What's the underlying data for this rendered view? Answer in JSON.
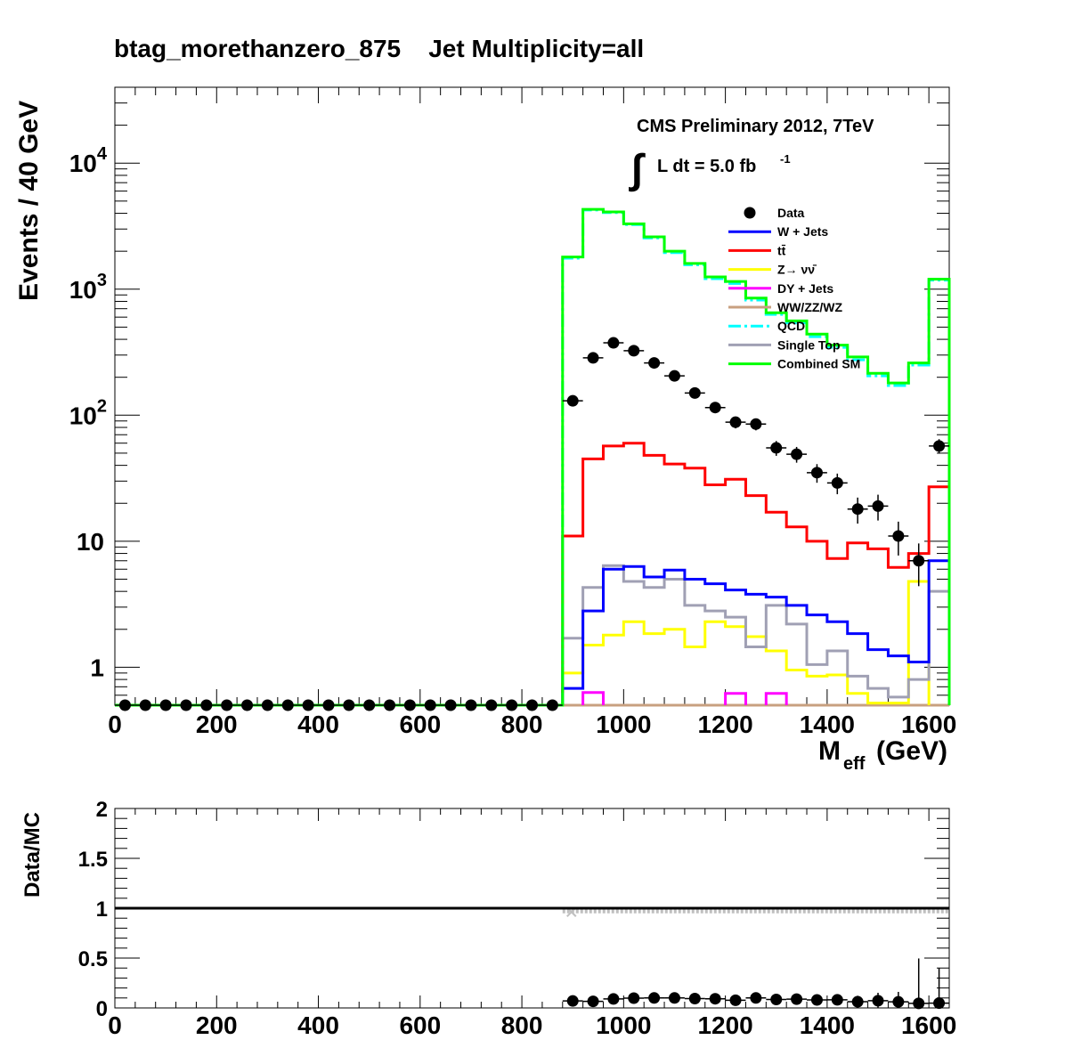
{
  "title": "btag_morethanzero_875    Jet Multiplicity=all",
  "cms_label": "CMS Preliminary 2012, 7TeV",
  "lumi_label": "L dt = 5.0 fb",
  "lumi_exp": "-1",
  "chart_data": [
    {
      "type": "line",
      "panel": "main",
      "ylabel": "Events / 40 GeV",
      "xlabel_main": "M",
      "xlabel_sub": "eff",
      "xlabel_unit": "(GeV)",
      "log_y": true,
      "xlim": [
        0,
        1640
      ],
      "ylim": [
        0.5,
        40000
      ],
      "x_ticks": [
        "0",
        "200",
        "400",
        "600",
        "800",
        "1000",
        "1200",
        "1400",
        "1600"
      ],
      "y_ticks": [
        {
          "value": 1,
          "base": "1",
          "exp": ""
        },
        {
          "value": 10,
          "base": "10",
          "exp": ""
        },
        {
          "value": 100,
          "base": "10",
          "exp": "2"
        },
        {
          "value": 1000,
          "base": "10",
          "exp": "3"
        },
        {
          "value": 10000,
          "base": "10",
          "exp": "4"
        }
      ],
      "bin_edges": [
        0,
        40,
        80,
        120,
        160,
        200,
        240,
        280,
        320,
        360,
        400,
        440,
        480,
        520,
        560,
        600,
        640,
        680,
        720,
        760,
        800,
        840,
        880,
        920,
        960,
        1000,
        1040,
        1080,
        1120,
        1160,
        1200,
        1240,
        1280,
        1320,
        1360,
        1400,
        1440,
        1480,
        1520,
        1560,
        1600,
        1640
      ],
      "legend": [
        {
          "label": "Data",
          "color": "#000000",
          "style": "marker"
        },
        {
          "label": "W + Jets",
          "color": "#0000ff",
          "style": "line"
        },
        {
          "label": "tt̄",
          "color": "#ff0000",
          "style": "line"
        },
        {
          "label": "Z→ νν̄",
          "color": "#ffff00",
          "style": "line"
        },
        {
          "label": "DY + Jets",
          "color": "#ff00ff",
          "style": "line"
        },
        {
          "label": "WW/ZZ/WZ",
          "color": "#c8a080",
          "style": "line"
        },
        {
          "label": "QCD",
          "color": "#00ffff",
          "style": "dashdot"
        },
        {
          "label": "Single Top",
          "color": "#a0a0b4",
          "style": "line"
        },
        {
          "label": "Combined SM",
          "color": "#00ff00",
          "style": "line"
        }
      ],
      "series": [
        {
          "name": "Combined SM",
          "color": "#00ff00",
          "width": 3,
          "values": [
            0.48,
            0.48,
            0.48,
            0.48,
            0.48,
            0.48,
            0.48,
            0.48,
            0.48,
            0.48,
            0.48,
            0.48,
            0.48,
            0.48,
            0.48,
            0.48,
            0.48,
            0.48,
            0.48,
            0.48,
            0.48,
            0.48,
            1800,
            4300,
            4100,
            3300,
            2600,
            2000,
            1600,
            1250,
            1150,
            850,
            650,
            560,
            440,
            360,
            290,
            215,
            180,
            260,
            1200
          ]
        },
        {
          "name": "QCD",
          "color": "#00ffff",
          "width": 3,
          "values": [
            null,
            null,
            null,
            null,
            null,
            null,
            null,
            null,
            null,
            null,
            null,
            null,
            null,
            null,
            null,
            null,
            null,
            null,
            null,
            null,
            null,
            null,
            1760,
            4250,
            4050,
            3250,
            2550,
            1950,
            1560,
            1210,
            1110,
            820,
            630,
            540,
            420,
            345,
            275,
            205,
            172,
            250,
            1180
          ]
        },
        {
          "name": "tt̄",
          "color": "#ff0000",
          "width": 3,
          "values": [
            null,
            null,
            null,
            null,
            null,
            null,
            null,
            null,
            null,
            null,
            null,
            null,
            null,
            null,
            null,
            null,
            null,
            null,
            null,
            null,
            null,
            null,
            11,
            45,
            57,
            60,
            48,
            41,
            38,
            28,
            31,
            23,
            17,
            13,
            10,
            7.3,
            9.7,
            8.7,
            6.2,
            8,
            27
          ]
        },
        {
          "name": "W + Jets",
          "color": "#0000ff",
          "width": 3,
          "values": [
            null,
            null,
            null,
            null,
            null,
            null,
            null,
            null,
            null,
            null,
            null,
            null,
            null,
            null,
            null,
            null,
            null,
            null,
            null,
            null,
            null,
            null,
            0.68,
            2.8,
            6,
            6.3,
            5.2,
            5.9,
            5,
            4.6,
            4.1,
            3.8,
            3.6,
            3.1,
            2.6,
            2.3,
            1.85,
            1.38,
            1.23,
            1.1,
            7
          ]
        },
        {
          "name": "Single Top",
          "color": "#a0a0b4",
          "width": 3,
          "values": [
            null,
            null,
            null,
            null,
            null,
            null,
            null,
            null,
            null,
            null,
            null,
            null,
            null,
            null,
            null,
            null,
            null,
            null,
            null,
            null,
            null,
            null,
            1.7,
            4.3,
            6.4,
            4.8,
            4.3,
            5,
            3.1,
            2.8,
            2.5,
            1.45,
            3.1,
            2.2,
            1.05,
            1.35,
            0.85,
            0.68,
            0.58,
            0.8,
            4
          ]
        },
        {
          "name": "Z→ νν̄",
          "color": "#ffff00",
          "width": 3,
          "values": [
            null,
            null,
            null,
            null,
            null,
            null,
            null,
            null,
            null,
            null,
            null,
            null,
            null,
            null,
            null,
            null,
            null,
            null,
            null,
            null,
            null,
            null,
            0.9,
            1.5,
            1.8,
            2.3,
            1.85,
            2,
            1.45,
            2.3,
            2.1,
            1.75,
            1.35,
            0.95,
            0.85,
            0.87,
            0.62,
            0.52,
            0.52,
            4.8,
            null
          ]
        },
        {
          "name": "DY + Jets",
          "color": "#ff00ff",
          "width": 3,
          "values": [
            null,
            null,
            null,
            null,
            null,
            null,
            null,
            null,
            null,
            null,
            null,
            null,
            null,
            null,
            null,
            null,
            null,
            null,
            null,
            null,
            null,
            null,
            null,
            0.63,
            null,
            null,
            null,
            null,
            null,
            null,
            0.62,
            null,
            0.62,
            null,
            null,
            null,
            null,
            null,
            null,
            null,
            null
          ]
        },
        {
          "name": "WW/ZZ/WZ",
          "color": "#c8a080",
          "width": 3,
          "values": [
            null,
            null,
            null,
            null,
            null,
            null,
            null,
            null,
            null,
            null,
            null,
            null,
            null,
            null,
            null,
            null,
            null,
            null,
            null,
            null,
            null,
            null,
            0.49,
            0.49,
            0.49,
            0.49,
            0.49,
            0.49,
            0.49,
            0.49,
            0.49,
            0.49,
            0.49,
            0.49,
            0.49,
            0.49,
            0.49,
            0.49,
            0.49,
            0.49,
            0.49
          ]
        }
      ],
      "data_points": {
        "name": "Data",
        "x": [
          20,
          60,
          100,
          140,
          180,
          220,
          260,
          300,
          340,
          380,
          420,
          460,
          500,
          540,
          580,
          620,
          660,
          700,
          740,
          780,
          820,
          860,
          900,
          940,
          980,
          1020,
          1060,
          1100,
          1140,
          1180,
          1220,
          1260,
          1300,
          1340,
          1380,
          1420,
          1460,
          1500,
          1540,
          1580,
          1620
        ],
        "y": [
          0.48,
          0.48,
          0.48,
          0.48,
          0.48,
          0.48,
          0.48,
          0.48,
          0.48,
          0.48,
          0.48,
          0.48,
          0.48,
          0.48,
          0.48,
          0.48,
          0.48,
          0.48,
          0.48,
          0.48,
          0.48,
          0.48,
          130,
          285,
          375,
          325,
          260,
          205,
          150,
          115,
          88,
          85,
          55,
          49,
          35,
          29,
          18,
          19,
          11,
          7,
          57
        ],
        "y_err": [
          0,
          0,
          0,
          0,
          0,
          0,
          0,
          0,
          0,
          0,
          0,
          0,
          0,
          0,
          0,
          0,
          0,
          0,
          0,
          0,
          0,
          0,
          11,
          17,
          19,
          18,
          16,
          14,
          12,
          11,
          9.4,
          9.2,
          7.4,
          7,
          5.9,
          5.4,
          4.2,
          4.4,
          3.3,
          2.6,
          7.5
        ]
      }
    },
    {
      "type": "scatter",
      "panel": "ratio",
      "ylabel": "Data/MC",
      "xlim": [
        0,
        1640
      ],
      "ylim": [
        0,
        2
      ],
      "x_ticks": [
        "0",
        "200",
        "400",
        "600",
        "800",
        "1000",
        "1200",
        "1400",
        "1600"
      ],
      "y_ticks": [
        "0",
        "0.5",
        "1",
        "1.5",
        "2"
      ],
      "reference_line": 1,
      "mc_error_band": {
        "color": "#c0c0c0",
        "x_from": 880,
        "x_to": 1640,
        "value": 0.98
      },
      "ratio_points": {
        "x": [
          900,
          940,
          980,
          1020,
          1060,
          1100,
          1140,
          1180,
          1220,
          1260,
          1300,
          1340,
          1380,
          1420,
          1460,
          1500,
          1540,
          1580,
          1620
        ],
        "y": [
          0.07,
          0.066,
          0.09,
          0.098,
          0.1,
          0.1,
          0.094,
          0.092,
          0.077,
          0.1,
          0.085,
          0.088,
          0.08,
          0.081,
          0.062,
          0.072,
          0.061,
          0.046,
          0.048
        ],
        "y_err": [
          0.007,
          0.005,
          0.006,
          0.007,
          0.007,
          0.01,
          0.009,
          0.01,
          0.01,
          0.015,
          0.015,
          0.02,
          0.02,
          0.03,
          0.06,
          0.08,
          0.1,
          0.45,
          0.35
        ]
      }
    }
  ]
}
